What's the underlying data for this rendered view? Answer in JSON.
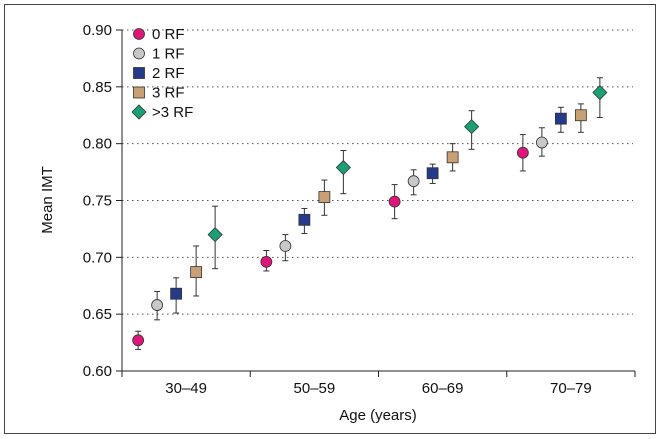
{
  "chart_data": {
    "type": "scatter",
    "xlabel": "Age (years)",
    "ylabel": "Mean IMT",
    "ylim": [
      0.6,
      0.9
    ],
    "yticks": [
      "0.60",
      "0.65",
      "0.70",
      "0.75",
      "0.80",
      "0.85",
      "0.90"
    ],
    "ytick_values": [
      0.6,
      0.65,
      0.7,
      0.75,
      0.8,
      0.85,
      0.9
    ],
    "categories": [
      "30–49",
      "50–59",
      "60–69",
      "70–79"
    ],
    "grid": "horizontal dotted",
    "legend_position": "top-left",
    "error_bars": true,
    "series": [
      {
        "name": "0 RF",
        "marker": "circle",
        "color": "#e0157a",
        "values": [
          0.627,
          0.696,
          0.749,
          0.792
        ],
        "err_low": [
          0.619,
          0.688,
          0.734,
          0.776
        ],
        "err_high": [
          0.635,
          0.706,
          0.764,
          0.808
        ]
      },
      {
        "name": "1 RF",
        "marker": "circle",
        "color": "#c8c8c8",
        "values": [
          0.658,
          0.71,
          0.767,
          0.801
        ],
        "err_low": [
          0.645,
          0.697,
          0.755,
          0.789
        ],
        "err_high": [
          0.67,
          0.72,
          0.777,
          0.814
        ]
      },
      {
        "name": "2 RF",
        "marker": "square",
        "color": "#263a8c",
        "values": [
          0.668,
          0.733,
          0.774,
          0.822
        ],
        "err_low": [
          0.651,
          0.721,
          0.765,
          0.81
        ],
        "err_high": [
          0.682,
          0.743,
          0.782,
          0.832
        ]
      },
      {
        "name": "3 RF",
        "marker": "square",
        "color": "#c8a074",
        "values": [
          0.687,
          0.753,
          0.788,
          0.825
        ],
        "err_low": [
          0.666,
          0.737,
          0.776,
          0.81
        ],
        "err_high": [
          0.71,
          0.768,
          0.8,
          0.835
        ]
      },
      {
        "name": ">3 RF",
        "marker": "diamond",
        "color": "#1aa075",
        "values": [
          0.72,
          0.779,
          0.815,
          0.845
        ],
        "err_low": [
          0.69,
          0.756,
          0.795,
          0.823
        ],
        "err_high": [
          0.745,
          0.794,
          0.829,
          0.858
        ]
      }
    ]
  }
}
